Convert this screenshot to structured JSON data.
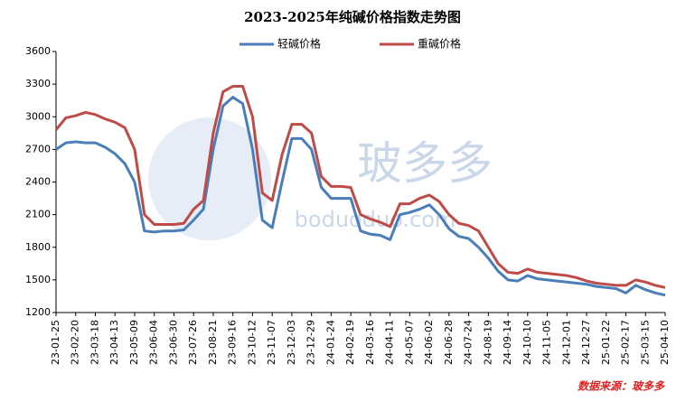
{
  "chart_data": {
    "type": "line",
    "title": "2023-2025年纯碱价格指数走势图",
    "source": "数据来源：玻多多",
    "watermark": [
      "玻多多",
      "boduoduo.com"
    ],
    "categories": [
      "23-01-25",
      null,
      "23-02-20",
      null,
      "23-03-18",
      null,
      "23-04-13",
      null,
      "23-05-09",
      null,
      "23-06-04",
      null,
      "23-06-30",
      null,
      "23-07-26",
      null,
      "23-08-21",
      null,
      "23-09-16",
      null,
      "23-10-12",
      null,
      "23-11-07",
      null,
      "23-12-03",
      null,
      "23-12-29",
      null,
      "24-01-24",
      null,
      "24-02-19",
      null,
      "24-03-16",
      null,
      "24-04-11",
      null,
      "24-05-07",
      null,
      "24-06-02",
      null,
      "24-06-28",
      null,
      "24-07-24",
      null,
      "24-08-19",
      null,
      "24-09-14",
      null,
      "24-10-10",
      null,
      "24-11-05",
      null,
      "24-12-01",
      null,
      "24-12-27",
      null,
      "25-01-22",
      null,
      "25-02-17",
      null,
      "25-03-15",
      null,
      "25-04-10"
    ],
    "series": [
      {
        "name": "轻碱价格",
        "color": "#4a7ebb",
        "values": [
          2700,
          2760,
          2770,
          2760,
          2760,
          2720,
          2660,
          2570,
          2400,
          1950,
          1940,
          1950,
          1950,
          1960,
          2050,
          2150,
          2700,
          3100,
          3180,
          3120,
          2700,
          2050,
          1980,
          2400,
          2800,
          2800,
          2700,
          2350,
          2250,
          2250,
          2250,
          1950,
          1920,
          1910,
          1870,
          2100,
          2120,
          2150,
          2190,
          2100,
          1970,
          1900,
          1880,
          1800,
          1700,
          1580,
          1500,
          1490,
          1540,
          1510,
          1500,
          1490,
          1480,
          1470,
          1460,
          1440,
          1430,
          1420,
          1380,
          1450,
          1410,
          1380,
          1360
        ]
      },
      {
        "name": "重碱价格",
        "color": "#be4b48",
        "values": [
          2880,
          2990,
          3010,
          3040,
          3020,
          2980,
          2950,
          2900,
          2700,
          2100,
          2010,
          2010,
          2010,
          2020,
          2150,
          2230,
          2850,
          3230,
          3280,
          3280,
          3000,
          2300,
          2230,
          2650,
          2930,
          2930,
          2850,
          2450,
          2360,
          2360,
          2350,
          2100,
          2060,
          2030,
          1990,
          2200,
          2200,
          2250,
          2280,
          2220,
          2100,
          2020,
          2000,
          1950,
          1800,
          1650,
          1570,
          1560,
          1600,
          1570,
          1560,
          1550,
          1540,
          1520,
          1490,
          1470,
          1460,
          1450,
          1450,
          1500,
          1480,
          1450,
          1430
        ]
      }
    ],
    "ylim": [
      1200,
      3600
    ],
    "yticks": [
      1200,
      1500,
      1800,
      2100,
      2400,
      2700,
      3000,
      3300,
      3600
    ],
    "legend": "top"
  }
}
